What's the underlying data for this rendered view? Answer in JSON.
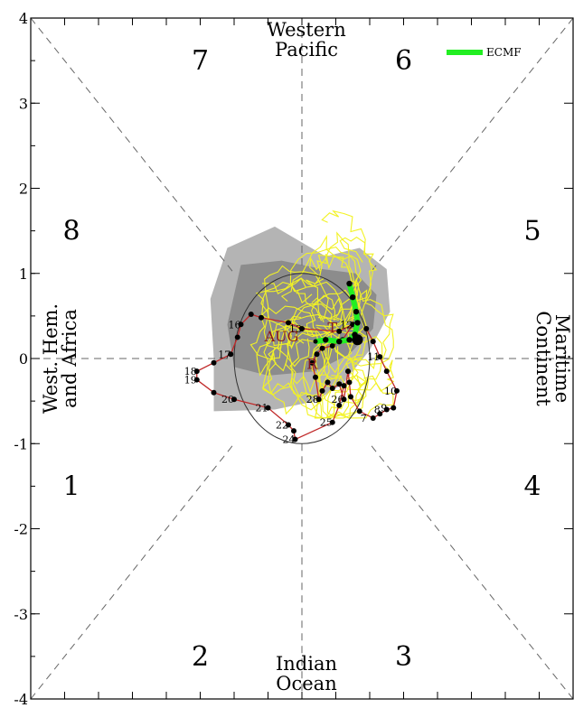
{
  "chart_data": {
    "type": "scatter",
    "xlim": [
      -4,
      4
    ],
    "ylim": [
      -4,
      4
    ],
    "y_tick_labels": [
      "4",
      "3",
      "2",
      "1",
      "0",
      "-1",
      "-2",
      "-3",
      "-4"
    ],
    "y_tick_values": [
      4,
      3,
      2,
      1,
      0,
      -1,
      -2,
      -3,
      -4
    ],
    "phase_labels": [
      {
        "text": "1",
        "x": -3.4,
        "y": -1.5
      },
      {
        "text": "2",
        "x": -1.5,
        "y": -3.5
      },
      {
        "text": "3",
        "x": 1.5,
        "y": -3.5
      },
      {
        "text": "4",
        "x": 3.4,
        "y": -1.5
      },
      {
        "text": "5",
        "x": 3.4,
        "y": 1.5
      },
      {
        "text": "6",
        "x": 1.5,
        "y": 3.5
      },
      {
        "text": "7",
        "x": -1.5,
        "y": 3.5
      },
      {
        "text": "8",
        "x": -3.4,
        "y": 1.5
      }
    ],
    "regions": {
      "top": [
        "Western",
        "Pacific"
      ],
      "bottom": [
        "Indian",
        "Ocean"
      ],
      "left": [
        "West. Hem.",
        "and Africa"
      ],
      "right": [
        "Maritime",
        "Continent"
      ]
    },
    "legend": [
      {
        "name": "ECMF",
        "color": "#22ee22"
      }
    ],
    "month_labels": [
      {
        "text": "AUG",
        "x": -0.3,
        "y": 0.2
      },
      {
        "text": "T",
        "x": 0.45,
        "y": 0.3
      },
      {
        "text": "R",
        "x": 0.15,
        "y": -0.12
      }
    ],
    "observed": {
      "color": "#c02828",
      "points": [
        {
          "day": "",
          "x": 0.95,
          "y": 0.35
        },
        {
          "day": "",
          "x": 1.05,
          "y": 0.2
        },
        {
          "day": "11",
          "x": 1.15,
          "y": 0.02
        },
        {
          "day": "",
          "x": 1.25,
          "y": -0.15
        },
        {
          "day": "10",
          "x": 1.4,
          "y": -0.38
        },
        {
          "day": "9",
          "x": 1.35,
          "y": -0.58
        },
        {
          "day": "8",
          "x": 1.25,
          "y": -0.6
        },
        {
          "day": "",
          "x": 1.15,
          "y": -0.65
        },
        {
          "day": "7",
          "x": 1.05,
          "y": -0.7
        },
        {
          "day": "",
          "x": 0.85,
          "y": -0.62
        },
        {
          "day": "",
          "x": 0.72,
          "y": -0.45
        },
        {
          "day": "",
          "x": 0.7,
          "y": -0.28
        },
        {
          "day": "",
          "x": 0.68,
          "y": -0.15
        },
        {
          "day": "26",
          "x": 0.62,
          "y": -0.48
        },
        {
          "day": "",
          "x": 0.55,
          "y": -0.3
        },
        {
          "day": "",
          "x": 0.45,
          "y": -0.35
        },
        {
          "day": "",
          "x": 0.38,
          "y": -0.28
        },
        {
          "day": "",
          "x": 0.3,
          "y": -0.38
        },
        {
          "day": "28",
          "x": 0.25,
          "y": -0.48
        },
        {
          "day": "",
          "x": 0.2,
          "y": -0.22
        },
        {
          "day": "",
          "x": 0.15,
          "y": -0.05
        },
        {
          "day": "",
          "x": 0.22,
          "y": 0.05
        },
        {
          "day": "",
          "x": 0.3,
          "y": 0.12
        },
        {
          "day": "",
          "x": 0.45,
          "y": 0.15
        },
        {
          "day": "",
          "x": 0.6,
          "y": 0.22
        },
        {
          "day": "12",
          "x": 0.75,
          "y": 0.4
        },
        {
          "day": "",
          "x": 0.55,
          "y": 0.32
        },
        {
          "day": "13",
          "x": 0.0,
          "y": 0.35
        },
        {
          "day": "",
          "x": -0.2,
          "y": 0.42
        },
        {
          "day": "",
          "x": -0.6,
          "y": 0.48
        },
        {
          "day": "",
          "x": -0.75,
          "y": 0.52
        },
        {
          "day": "16",
          "x": -0.9,
          "y": 0.4
        },
        {
          "day": "",
          "x": -0.95,
          "y": 0.25
        },
        {
          "day": "17",
          "x": -1.05,
          "y": 0.05
        },
        {
          "day": "",
          "x": -1.3,
          "y": -0.05
        },
        {
          "day": "18",
          "x": -1.55,
          "y": -0.15
        },
        {
          "day": "19",
          "x": -1.55,
          "y": -0.25
        },
        {
          "day": "",
          "x": -1.3,
          "y": -0.4
        },
        {
          "day": "20",
          "x": -1.0,
          "y": -0.48
        },
        {
          "day": "21",
          "x": -0.5,
          "y": -0.58
        },
        {
          "day": "22",
          "x": -0.2,
          "y": -0.78
        },
        {
          "day": "",
          "x": -0.12,
          "y": -0.85
        },
        {
          "day": "24",
          "x": -0.1,
          "y": -0.95
        },
        {
          "day": "25",
          "x": 0.45,
          "y": -0.75
        },
        {
          "day": "",
          "x": 0.55,
          "y": -0.55
        },
        {
          "day": "",
          "x": 0.62,
          "y": -0.32
        }
      ]
    },
    "forecast_green": [
      {
        "x": 0.7,
        "y": 0.88
      },
      {
        "x": 0.75,
        "y": 0.72
      },
      {
        "x": 0.8,
        "y": 0.55
      },
      {
        "x": 0.82,
        "y": 0.42
      },
      {
        "x": 0.78,
        "y": 0.28
      },
      {
        "x": 0.7,
        "y": 0.22
      },
      {
        "x": 0.55,
        "y": 0.2
      },
      {
        "x": 0.35,
        "y": 0.22
      },
      {
        "x": 0.2,
        "y": 0.2
      }
    ],
    "reference_circle_radius": 1
  }
}
